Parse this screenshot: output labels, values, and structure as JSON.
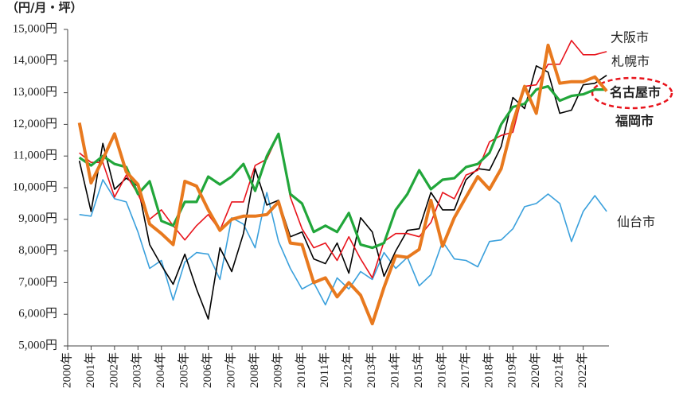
{
  "chart_data": {
    "type": "line",
    "y_label": "（円/月・坪）",
    "x": [
      2000.5,
      2001,
      2001.5,
      2002,
      2002.5,
      2003,
      2003.5,
      2004,
      2004.5,
      2005,
      2005.5,
      2006,
      2006.5,
      2007,
      2007.5,
      2008,
      2008.5,
      2009,
      2009.5,
      2010,
      2010.5,
      2011,
      2011.5,
      2012,
      2012.5,
      2013,
      2013.5,
      2014,
      2014.5,
      2015,
      2015.5,
      2016,
      2016.5,
      2017,
      2017.5,
      2018,
      2018.5,
      2019,
      2019.5,
      2020,
      2020.5,
      2021,
      2021.5,
      2022,
      2022.5,
      2023
    ],
    "xlim": [
      2000,
      2023.1
    ],
    "xticks": [
      {
        "value": 2000,
        "label": "2000年"
      },
      {
        "value": 2001,
        "label": "2001年"
      },
      {
        "value": 2002,
        "label": "2002年"
      },
      {
        "value": 2003,
        "label": "2003年"
      },
      {
        "value": 2004,
        "label": "2004年"
      },
      {
        "value": 2005,
        "label": "2005年"
      },
      {
        "value": 2006,
        "label": "2006年"
      },
      {
        "value": 2007,
        "label": "2007年"
      },
      {
        "value": 2008,
        "label": "2008年"
      },
      {
        "value": 2009,
        "label": "2009年"
      },
      {
        "value": 2010,
        "label": "2010年"
      },
      {
        "value": 2011,
        "label": "2011年"
      },
      {
        "value": 2012,
        "label": "2012年"
      },
      {
        "value": 2013,
        "label": "2013年"
      },
      {
        "value": 2014,
        "label": "2014年"
      },
      {
        "value": 2015,
        "label": "2015年"
      },
      {
        "value": 2016,
        "label": "2016年"
      },
      {
        "value": 2017,
        "label": "2017年"
      },
      {
        "value": 2018,
        "label": "2018年"
      },
      {
        "value": 2019,
        "label": "2019年"
      },
      {
        "value": 2020,
        "label": "2020年"
      },
      {
        "value": 2021,
        "label": "2021年"
      },
      {
        "value": 2022,
        "label": "2022年"
      }
    ],
    "ylim": [
      5000,
      15000
    ],
    "yticks": [
      {
        "value": 5000,
        "label": "5,000円"
      },
      {
        "value": 6000,
        "label": "6,000円"
      },
      {
        "value": 7000,
        "label": "7,000円"
      },
      {
        "value": 8000,
        "label": "8,000円"
      },
      {
        "value": 9000,
        "label": "9,000円"
      },
      {
        "value": 10000,
        "label": "10,000円"
      },
      {
        "value": 11000,
        "label": "11,000円"
      },
      {
        "value": 12000,
        "label": "12,000円"
      },
      {
        "value": 13000,
        "label": "13,000円"
      },
      {
        "value": 14000,
        "label": "14,000円"
      },
      {
        "value": 15000,
        "label": "15,000円"
      }
    ],
    "series": [
      {
        "name": "仙台市",
        "color": "#3aa0dc",
        "width": 1.6,
        "values": [
          9150,
          9100,
          10250,
          9650,
          9550,
          8600,
          7450,
          7700,
          6450,
          7650,
          7950,
          7900,
          7100,
          9050,
          8850,
          8100,
          9850,
          8300,
          7450,
          6800,
          7000,
          6300,
          7150,
          6800,
          7350,
          7100,
          7950,
          7450,
          7800,
          6900,
          7250,
          8300,
          7750,
          7700,
          7500,
          8300,
          8350,
          8700,
          9400,
          9500,
          9800,
          9500,
          8300,
          9250,
          9750,
          9250
        ]
      },
      {
        "name": "札幌市",
        "color": "#000000",
        "width": 1.6,
        "values": [
          10850,
          9250,
          11400,
          9950,
          10300,
          10050,
          8200,
          7550,
          6950,
          7900,
          6800,
          5850,
          8100,
          7350,
          8550,
          10600,
          9450,
          9600,
          8450,
          8600,
          7750,
          7600,
          8250,
          7300,
          9050,
          8600,
          7200,
          8000,
          8650,
          8700,
          9850,
          9300,
          9300,
          10250,
          10600,
          10550,
          11300,
          12850,
          12500,
          13850,
          13650,
          12350,
          12450,
          13250,
          13300,
          13550
        ]
      },
      {
        "name": "大阪市",
        "color": "#e8141c",
        "width": 1.6,
        "values": [
          11100,
          10800,
          10800,
          9700,
          10400,
          9800,
          9000,
          9300,
          8800,
          8350,
          8800,
          9150,
          8650,
          9550,
          9550,
          10700,
          10900,
          11700,
          9700,
          8700,
          8100,
          8250,
          7700,
          8450,
          7750,
          7150,
          8300,
          8550,
          8550,
          8450,
          8900,
          9850,
          9650,
          10400,
          10550,
          11450,
          11650,
          11750,
          13200,
          13250,
          13900,
          13900,
          14650,
          14200,
          14200,
          14300
        ]
      },
      {
        "name": "名古屋市",
        "color": "#21a63a",
        "width": 3.2,
        "values": [
          10950,
          10700,
          11000,
          10750,
          10650,
          9800,
          10200,
          8950,
          8800,
          9550,
          9550,
          10350,
          10100,
          10350,
          10750,
          9900,
          11000,
          11700,
          9800,
          9500,
          8600,
          8800,
          8600,
          9200,
          8200,
          8100,
          8250,
          9300,
          9800,
          10550,
          9950,
          10250,
          10300,
          10650,
          10750,
          11100,
          12000,
          12550,
          12650,
          13100,
          13200,
          12750,
          12900,
          12950,
          13100,
          13100
        ]
      },
      {
        "name": "福岡市",
        "color": "#e8791e",
        "width": 4,
        "values": [
          12050,
          10150,
          10900,
          11700,
          10500,
          10100,
          8850,
          8550,
          8200,
          10200,
          10050,
          9300,
          8650,
          9000,
          9100,
          9100,
          9150,
          9550,
          8250,
          8200,
          7000,
          7150,
          6550,
          7000,
          6600,
          5700,
          6850,
          7850,
          7800,
          8050,
          9600,
          8150,
          9050,
          9700,
          10350,
          9950,
          10600,
          12050,
          13200,
          12350,
          14500,
          13300,
          13350,
          13350,
          13500,
          13050
        ]
      }
    ]
  }
}
